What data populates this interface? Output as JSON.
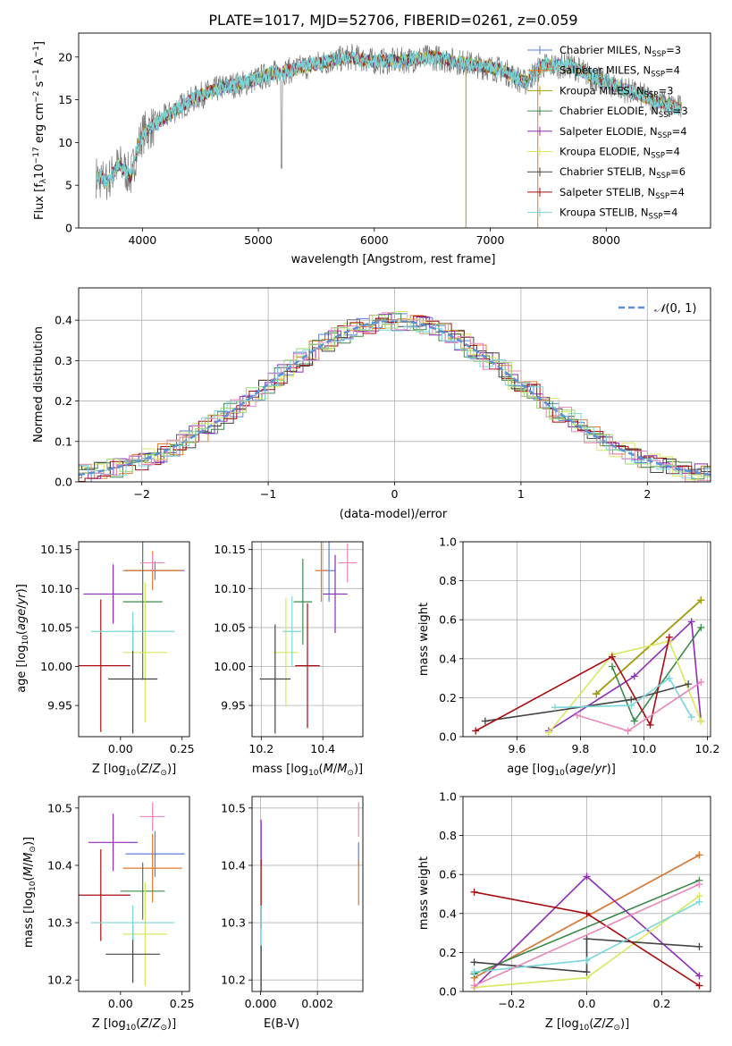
{
  "chart_data": [
    {
      "id": "spectrum",
      "type": "line",
      "title": "PLATE=1017, MJD=52706, FIBERID=0261, z=0.059",
      "xlabel": "wavelength [Angstrom, rest frame]",
      "ylabel": "Flux [f$_\\lambda$10$^{-17}$ erg cm$^{-2}$ s$^{-1}$ A$^{-1}$]",
      "xlim": [
        3450,
        8900
      ],
      "ylim": [
        0,
        22.8
      ],
      "xticks": [
        4000,
        5000,
        6000,
        7000,
        8000
      ],
      "yticks": [
        0,
        5,
        10,
        15,
        20
      ],
      "legend_position": "top-right",
      "series": [
        {
          "name": "Chabrier MILES, N$_{SSP}$=3",
          "color": "#5a7fe0"
        },
        {
          "name": "Salpeter MILES, N$_{SSP}$=4",
          "color": "#e07a2a"
        },
        {
          "name": "Kroupa MILES, N$_{SSP}$=3",
          "color": "#a0a000"
        },
        {
          "name": "Chabrier ELODIE, N$_{SSP}$=3",
          "color": "#3c8a4c"
        },
        {
          "name": "Salpeter ELODIE, N$_{SSP}$=4",
          "color": "#8e2cb5"
        },
        {
          "name": "Kroupa ELODIE, N$_{SSP}$=4",
          "color": "#d8e860"
        },
        {
          "name": "Chabrier STELIB, N$_{SSP}$=6",
          "color": "#444444"
        },
        {
          "name": "Salpeter STELIB, N$_{SSP}$=4",
          "color": "#a80c10"
        },
        {
          "name": "Kroupa STELIB, N$_{SSP}$=4",
          "color": "#7ad6da"
        }
      ],
      "spectrum_knots": [
        [
          3600,
          6
        ],
        [
          3700,
          5.5
        ],
        [
          3800,
          7.5
        ],
        [
          3900,
          6
        ],
        [
          3950,
          9
        ],
        [
          4000,
          11
        ],
        [
          4100,
          12
        ],
        [
          4300,
          14
        ],
        [
          4500,
          15.5
        ],
        [
          4700,
          16.5
        ],
        [
          4900,
          17
        ],
        [
          5100,
          18
        ],
        [
          5300,
          18.5
        ],
        [
          5500,
          19.2
        ],
        [
          5800,
          20
        ],
        [
          6000,
          19.5
        ],
        [
          6200,
          19.5
        ],
        [
          6500,
          20
        ],
        [
          6700,
          19.5
        ],
        [
          6900,
          19
        ],
        [
          7100,
          18.5
        ],
        [
          7300,
          17
        ],
        [
          7450,
          19
        ],
        [
          7700,
          19
        ],
        [
          7900,
          17.5
        ],
        [
          8100,
          16.5
        ],
        [
          8300,
          15.5
        ],
        [
          8500,
          14.5
        ],
        [
          8650,
          14
        ]
      ]
    },
    {
      "id": "residuals",
      "type": "line",
      "xlabel": "(data-model)/error",
      "ylabel": "Normed distribution",
      "xlim": [
        -2.5,
        2.5
      ],
      "ylim": [
        0,
        0.48
      ],
      "xticks": [
        -2,
        -1,
        0,
        1,
        2
      ],
      "yticks": [
        0.0,
        0.1,
        0.2,
        0.3,
        0.4
      ],
      "grid": true,
      "legend": "$\\mathcal{N}(0,1)$",
      "legend_position": "top-right",
      "reference_curve": {
        "name": "N(0,1)",
        "color": "#5b8fd6",
        "style": "dashed"
      },
      "hist_colors": [
        "#5a7fe0",
        "#e07a2a",
        "#3c8a4c",
        "#8e2cb5",
        "#d8e860",
        "#444444",
        "#a80c10",
        "#7ad6da",
        "#e887b8",
        "#9bd870"
      ]
    },
    {
      "id": "age-vs-Z",
      "type": "scatter",
      "xlabel": "Z [log$_{10}$(Z/Z$_\\odot$)]",
      "ylabel": "age  [log$_{10}$(age/yr)]",
      "xlim": [
        -0.17,
        0.28
      ],
      "ylim": [
        9.91,
        10.16
      ],
      "xticks": [
        0.0,
        0.25
      ],
      "xticklabels": [
        "0.00",
        "0.25"
      ],
      "yticks": [
        9.95,
        10.0,
        10.05,
        10.1,
        10.15
      ],
      "points": [
        {
          "color": "#5a7fe0",
          "x": 0.14,
          "xerr": 0.12,
          "y": 10.123,
          "yerr": 0.012
        },
        {
          "color": "#e07a2a",
          "x": 0.13,
          "xerr": 0.12,
          "y": 10.123,
          "yerr": 0.025
        },
        {
          "color": "#3c8a4c",
          "x": 0.09,
          "xerr": 0.08,
          "y": 10.083,
          "yerr": 0.1
        },
        {
          "color": "#8e2cb5",
          "x": -0.03,
          "xerr": 0.12,
          "y": 10.093,
          "yerr": 0.038
        },
        {
          "color": "#d8e860",
          "x": 0.1,
          "xerr": 0.09,
          "y": 10.018,
          "yerr": 0.09
        },
        {
          "color": "#444444",
          "x": 0.05,
          "xerr": 0.1,
          "y": 9.984,
          "yerr": 0.07
        },
        {
          "color": "#a80c10",
          "x": -0.08,
          "xerr": 0.12,
          "y": 10.001,
          "yerr": 0.085
        },
        {
          "color": "#7ad6da",
          "x": 0.05,
          "xerr": 0.17,
          "y": 10.045,
          "yerr": 0.025
        },
        {
          "color": "#e887b8",
          "x": 0.13,
          "xerr": 0.05,
          "y": 10.133,
          "yerr": 0.012
        }
      ]
    },
    {
      "id": "age-vs-mass",
      "type": "scatter",
      "xlabel": "mass [log$_{10}$(M/M$_\\odot$)]",
      "ylabel": "",
      "xlim": [
        10.17,
        10.53
      ],
      "ylim": [
        9.91,
        10.16
      ],
      "xticks": [
        10.2,
        10.4
      ],
      "yticks": [
        9.95,
        10.0,
        10.05,
        10.1,
        10.15
      ],
      "points": [
        {
          "color": "#5a7fe0",
          "x": 10.42,
          "xerr": 0.02,
          "y": 10.123,
          "yerr": 0.04
        },
        {
          "color": "#e07a2a",
          "x": 10.395,
          "xerr": 0.02,
          "y": 10.123,
          "yerr": 0.04
        },
        {
          "color": "#3c8a4c",
          "x": 10.335,
          "xerr": 0.03,
          "y": 10.083,
          "yerr": 0.055
        },
        {
          "color": "#8e2cb5",
          "x": 10.44,
          "xerr": 0.04,
          "y": 10.093,
          "yerr": 0.05
        },
        {
          "color": "#d8e860",
          "x": 10.28,
          "xerr": 0.04,
          "y": 10.018,
          "yerr": 0.07
        },
        {
          "color": "#444444",
          "x": 10.245,
          "xerr": 0.05,
          "y": 9.984,
          "yerr": 0.07
        },
        {
          "color": "#a80c10",
          "x": 10.35,
          "xerr": 0.04,
          "y": 10.001,
          "yerr": 0.08
        },
        {
          "color": "#7ad6da",
          "x": 10.3,
          "xerr": 0.03,
          "y": 10.045,
          "yerr": 0.045
        },
        {
          "color": "#e887b8",
          "x": 10.48,
          "xerr": 0.03,
          "y": 10.133,
          "yerr": 0.025
        }
      ]
    },
    {
      "id": "massweight-vs-age",
      "type": "line",
      "xlabel": "age  [log$_{10}$(age/yr)]",
      "ylabel": "mass weight",
      "xlim": [
        9.43,
        10.21
      ],
      "ylim": [
        0,
        1
      ],
      "xticks": [
        9.6,
        9.8,
        10.0,
        10.2
      ],
      "yticks": [
        0.0,
        0.2,
        0.4,
        0.6,
        0.8,
        1.0
      ],
      "grid": true,
      "series": [
        {
          "color": "#5a7fe0",
          "x": [
            9.85,
            10.18
          ],
          "y": [
            0.22,
            0.7
          ]
        },
        {
          "color": "#e07a2a",
          "x": [
            9.85,
            10.18
          ],
          "y": [
            0.22,
            0.7
          ]
        },
        {
          "color": "#a0a000",
          "x": [
            9.85,
            10.18
          ],
          "y": [
            0.22,
            0.7
          ]
        },
        {
          "color": "#3c8a4c",
          "x": [
            9.9,
            9.97,
            10.18
          ],
          "y": [
            0.36,
            0.08,
            0.56
          ]
        },
        {
          "color": "#8e2cb5",
          "x": [
            9.7,
            9.97,
            10.15,
            10.18
          ],
          "y": [
            0.03,
            0.31,
            0.59,
            0.08
          ]
        },
        {
          "color": "#d8e860",
          "x": [
            9.7,
            9.9,
            10.08,
            10.18
          ],
          "y": [
            0.02,
            0.42,
            0.49,
            0.08
          ]
        },
        {
          "color": "#444444",
          "x": [
            9.5,
            9.96,
            10.14
          ],
          "y": [
            0.08,
            0.19,
            0.27
          ]
        },
        {
          "color": "#a80c10",
          "x": [
            9.47,
            9.9,
            10.02,
            10.08
          ],
          "y": [
            0.03,
            0.41,
            0.06,
            0.51
          ]
        },
        {
          "color": "#7ad6da",
          "x": [
            9.72,
            9.96,
            10.08,
            10.15
          ],
          "y": [
            0.15,
            0.16,
            0.3,
            0.1
          ]
        },
        {
          "color": "#e887b8",
          "x": [
            9.79,
            9.95,
            10.18
          ],
          "y": [
            0.11,
            0.03,
            0.28
          ]
        }
      ]
    },
    {
      "id": "mass-vs-Z",
      "type": "scatter",
      "xlabel": "Z [log$_{10}$(Z/Z$_\\odot$)]",
      "ylabel": "mass [log$_{10}$(M/M$_\\odot$)]",
      "xlim": [
        -0.17,
        0.28
      ],
      "ylim": [
        10.18,
        10.52
      ],
      "xticks": [
        0.0,
        0.25
      ],
      "xticklabels": [
        "0.00",
        "0.25"
      ],
      "yticks": [
        10.2,
        10.3,
        10.4,
        10.5
      ],
      "points": [
        {
          "color": "#5a7fe0",
          "x": 0.14,
          "xerr": 0.12,
          "y": 10.42,
          "yerr": 0.04
        },
        {
          "color": "#e07a2a",
          "x": 0.13,
          "xerr": 0.12,
          "y": 10.395,
          "yerr": 0.06
        },
        {
          "color": "#3c8a4c",
          "x": 0.09,
          "xerr": 0.09,
          "y": 10.355,
          "yerr": 0.05
        },
        {
          "color": "#8e2cb5",
          "x": -0.03,
          "xerr": 0.1,
          "y": 10.44,
          "yerr": 0.05
        },
        {
          "color": "#d8e860",
          "x": 0.1,
          "xerr": 0.09,
          "y": 10.28,
          "yerr": 0.09
        },
        {
          "color": "#444444",
          "x": 0.05,
          "xerr": 0.11,
          "y": 10.245,
          "yerr": 0.05
        },
        {
          "color": "#a80c10",
          "x": -0.08,
          "xerr": 0.12,
          "y": 10.348,
          "yerr": 0.08
        },
        {
          "color": "#7ad6da",
          "x": 0.05,
          "xerr": 0.17,
          "y": 10.3,
          "yerr": 0.03
        },
        {
          "color": "#e887b8",
          "x": 0.13,
          "xerr": 0.05,
          "y": 10.485,
          "yerr": 0.025
        }
      ]
    },
    {
      "id": "mass-vs-EBV",
      "type": "scatter",
      "xlabel": "E(B-V)",
      "ylabel": "",
      "xlim": [
        -0.0003,
        0.0036
      ],
      "ylim": [
        10.18,
        10.52
      ],
      "xticks": [
        0.0,
        0.002
      ],
      "xticklabels": [
        "0.000",
        "0.002"
      ],
      "yticks": [
        10.2,
        10.3,
        10.4,
        10.5
      ],
      "points": [
        {
          "color": "#5a7fe0",
          "x": 0.00345,
          "y": 10.42,
          "yerr": 0.02
        },
        {
          "color": "#e07a2a",
          "x": 0.00345,
          "y": 10.37,
          "yerr": 0.04
        },
        {
          "color": "#e887b8",
          "x": 0.00345,
          "y": 10.48,
          "yerr": 0.03
        },
        {
          "color": "#8e2cb5",
          "x": 2e-05,
          "y": 10.44,
          "yerr": 0.04
        },
        {
          "color": "#a80c10",
          "x": 2e-05,
          "y": 10.35,
          "yerr": 0.06
        },
        {
          "color": "#7ad6da",
          "x": 2e-05,
          "y": 10.29,
          "yerr": 0.04
        },
        {
          "color": "#444444",
          "x": 2e-05,
          "y": 10.22,
          "yerr": 0.04
        }
      ]
    },
    {
      "id": "massweight-vs-Z",
      "type": "line",
      "xlabel": "Z [log$_{10}$(Z/Z$_\\odot$)]",
      "ylabel": "mass weight",
      "xlim": [
        -0.33,
        0.33
      ],
      "ylim": [
        0,
        1
      ],
      "xticks": [
        -0.2,
        0.0,
        0.2
      ],
      "yticks": [
        0.0,
        0.2,
        0.4,
        0.6,
        0.8,
        1.0
      ],
      "grid": true,
      "series": [
        {
          "color": "#5a7fe0",
          "x": [
            -0.3,
            0.3
          ],
          "y": [
            0.07,
            0.7
          ]
        },
        {
          "color": "#e07a2a",
          "x": [
            -0.3,
            0.3
          ],
          "y": [
            0.07,
            0.7
          ]
        },
        {
          "color": "#3c8a4c",
          "x": [
            -0.3,
            0.3
          ],
          "y": [
            0.09,
            0.57
          ]
        },
        {
          "color": "#8e2cb5",
          "x": [
            -0.3,
            0.0,
            0.3
          ],
          "y": [
            0.02,
            0.59,
            0.08
          ]
        },
        {
          "color": "#d8e860",
          "x": [
            -0.3,
            0.0,
            0.3
          ],
          "y": [
            0.02,
            0.07,
            0.49
          ]
        },
        {
          "color": "#444444",
          "x": [
            -0.3,
            0.0,
            0.0,
            0.3
          ],
          "y": [
            0.15,
            0.1,
            0.27,
            0.23
          ]
        },
        {
          "color": "#a80c10",
          "x": [
            -0.3,
            0.0,
            0.3
          ],
          "y": [
            0.51,
            0.4,
            0.03
          ]
        },
        {
          "color": "#7ad6da",
          "x": [
            -0.3,
            0.0,
            0.3
          ],
          "y": [
            0.1,
            0.16,
            0.46
          ]
        },
        {
          "color": "#e887b8",
          "x": [
            -0.3,
            0.3
          ],
          "y": [
            0.03,
            0.55
          ]
        }
      ]
    }
  ]
}
